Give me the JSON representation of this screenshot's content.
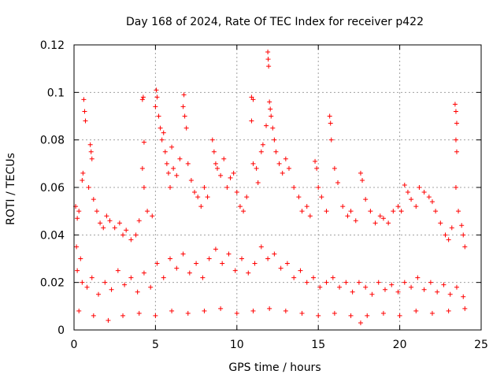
{
  "chart_data": {
    "type": "scatter",
    "title": "Day 168 of 2024, Rate Of TEC Index for receiver p422",
    "xlabel": "GPS time / hours",
    "ylabel": "ROTI / TECUs",
    "xlim": [
      0,
      25
    ],
    "ylim": [
      0,
      0.12
    ],
    "xticks": [
      0,
      5,
      10,
      15,
      20,
      25
    ],
    "xtick_labels": [
      "0",
      "5",
      "10",
      "15",
      "20",
      "25"
    ],
    "yticks": [
      0,
      0.02,
      0.04,
      0.06,
      0.08,
      0.1,
      0.12
    ],
    "ytick_labels": [
      "0",
      "0.02",
      "0.04",
      "0.06",
      "0.08",
      "0.1",
      "0.12"
    ],
    "grid": true,
    "marker": "+",
    "series": [
      {
        "color": "#ff0000",
        "points": [
          [
            0.6,
            0.097
          ],
          [
            0.65,
            0.092
          ],
          [
            0.7,
            0.088
          ],
          [
            0.55,
            0.066
          ],
          [
            0.5,
            0.063
          ],
          [
            0.3,
            0.05
          ],
          [
            0.2,
            0.047
          ],
          [
            0.1,
            0.052
          ],
          [
            0.15,
            0.035
          ],
          [
            0.4,
            0.03
          ],
          [
            1.0,
            0.078
          ],
          [
            1.05,
            0.075
          ],
          [
            1.1,
            0.072
          ],
          [
            0.9,
            0.06
          ],
          [
            1.2,
            0.055
          ],
          [
            1.4,
            0.05
          ],
          [
            1.6,
            0.045
          ],
          [
            1.8,
            0.043
          ],
          [
            2.0,
            0.048
          ],
          [
            2.2,
            0.046
          ],
          [
            2.5,
            0.043
          ],
          [
            2.8,
            0.045
          ],
          [
            3.0,
            0.04
          ],
          [
            3.2,
            0.042
          ],
          [
            3.5,
            0.038
          ],
          [
            3.8,
            0.04
          ],
          [
            4.0,
            0.046
          ],
          [
            4.2,
            0.097
          ],
          [
            4.25,
            0.098
          ],
          [
            4.3,
            0.079
          ],
          [
            4.2,
            0.068
          ],
          [
            4.3,
            0.06
          ],
          [
            4.5,
            0.05
          ],
          [
            4.8,
            0.048
          ],
          [
            5.05,
            0.101
          ],
          [
            5.1,
            0.098
          ],
          [
            5.0,
            0.094
          ],
          [
            5.2,
            0.09
          ],
          [
            5.3,
            0.085
          ],
          [
            5.4,
            0.08
          ],
          [
            5.5,
            0.083
          ],
          [
            5.6,
            0.075
          ],
          [
            5.7,
            0.07
          ],
          [
            5.8,
            0.066
          ],
          [
            5.9,
            0.06
          ],
          [
            6.0,
            0.077
          ],
          [
            6.1,
            0.068
          ],
          [
            6.3,
            0.065
          ],
          [
            6.5,
            0.072
          ],
          [
            6.7,
            0.094
          ],
          [
            6.75,
            0.099
          ],
          [
            6.8,
            0.09
          ],
          [
            6.9,
            0.085
          ],
          [
            7.0,
            0.07
          ],
          [
            7.2,
            0.063
          ],
          [
            7.4,
            0.058
          ],
          [
            7.6,
            0.056
          ],
          [
            7.8,
            0.052
          ],
          [
            8.0,
            0.06
          ],
          [
            8.2,
            0.056
          ],
          [
            8.5,
            0.08
          ],
          [
            8.6,
            0.075
          ],
          [
            8.7,
            0.07
          ],
          [
            8.8,
            0.068
          ],
          [
            9.0,
            0.065
          ],
          [
            9.2,
            0.072
          ],
          [
            9.4,
            0.06
          ],
          [
            9.6,
            0.064
          ],
          [
            9.8,
            0.066
          ],
          [
            10.0,
            0.058
          ],
          [
            10.2,
            0.052
          ],
          [
            10.4,
            0.05
          ],
          [
            10.6,
            0.056
          ],
          [
            10.9,
            0.098
          ],
          [
            11.0,
            0.097
          ],
          [
            10.9,
            0.088
          ],
          [
            11.0,
            0.07
          ],
          [
            11.2,
            0.068
          ],
          [
            11.3,
            0.062
          ],
          [
            11.5,
            0.075
          ],
          [
            11.6,
            0.078
          ],
          [
            11.8,
            0.086
          ],
          [
            11.9,
            0.117
          ],
          [
            11.92,
            0.114
          ],
          [
            11.95,
            0.111
          ],
          [
            12.0,
            0.096
          ],
          [
            12.05,
            0.093
          ],
          [
            12.1,
            0.09
          ],
          [
            12.2,
            0.085
          ],
          [
            12.3,
            0.08
          ],
          [
            12.4,
            0.075
          ],
          [
            12.6,
            0.07
          ],
          [
            12.8,
            0.066
          ],
          [
            13.0,
            0.072
          ],
          [
            13.2,
            0.068
          ],
          [
            13.5,
            0.06
          ],
          [
            13.8,
            0.056
          ],
          [
            14.0,
            0.05
          ],
          [
            14.3,
            0.052
          ],
          [
            14.5,
            0.048
          ],
          [
            14.8,
            0.071
          ],
          [
            14.9,
            0.068
          ],
          [
            15.0,
            0.06
          ],
          [
            15.2,
            0.056
          ],
          [
            15.5,
            0.05
          ],
          [
            15.7,
            0.09
          ],
          [
            15.75,
            0.087
          ],
          [
            15.8,
            0.08
          ],
          [
            16.0,
            0.068
          ],
          [
            16.2,
            0.062
          ],
          [
            16.5,
            0.052
          ],
          [
            16.8,
            0.048
          ],
          [
            17.0,
            0.05
          ],
          [
            17.3,
            0.046
          ],
          [
            17.6,
            0.066
          ],
          [
            17.7,
            0.063
          ],
          [
            17.9,
            0.055
          ],
          [
            18.2,
            0.05
          ],
          [
            18.5,
            0.045
          ],
          [
            18.8,
            0.048
          ],
          [
            19.0,
            0.047
          ],
          [
            19.3,
            0.045
          ],
          [
            19.6,
            0.05
          ],
          [
            19.9,
            0.052
          ],
          [
            20.1,
            0.05
          ],
          [
            20.3,
            0.061
          ],
          [
            20.5,
            0.058
          ],
          [
            20.7,
            0.055
          ],
          [
            21.0,
            0.052
          ],
          [
            21.2,
            0.06
          ],
          [
            21.5,
            0.058
          ],
          [
            21.8,
            0.056
          ],
          [
            22.0,
            0.054
          ],
          [
            22.2,
            0.05
          ],
          [
            22.5,
            0.045
          ],
          [
            22.8,
            0.04
          ],
          [
            23.0,
            0.038
          ],
          [
            23.2,
            0.043
          ],
          [
            23.4,
            0.095
          ],
          [
            23.45,
            0.092
          ],
          [
            23.5,
            0.087
          ],
          [
            23.45,
            0.08
          ],
          [
            23.5,
            0.075
          ],
          [
            23.45,
            0.06
          ],
          [
            23.6,
            0.05
          ],
          [
            23.8,
            0.044
          ],
          [
            23.9,
            0.04
          ],
          [
            24.0,
            0.035
          ],
          [
            0.2,
            0.025
          ],
          [
            0.5,
            0.02
          ],
          [
            0.8,
            0.018
          ],
          [
            1.1,
            0.022
          ],
          [
            1.5,
            0.015
          ],
          [
            1.9,
            0.02
          ],
          [
            2.3,
            0.017
          ],
          [
            2.7,
            0.025
          ],
          [
            3.1,
            0.019
          ],
          [
            3.5,
            0.022
          ],
          [
            3.9,
            0.016
          ],
          [
            4.3,
            0.024
          ],
          [
            4.7,
            0.018
          ],
          [
            5.1,
            0.028
          ],
          [
            5.5,
            0.022
          ],
          [
            5.9,
            0.03
          ],
          [
            6.3,
            0.026
          ],
          [
            6.7,
            0.032
          ],
          [
            7.1,
            0.024
          ],
          [
            7.5,
            0.028
          ],
          [
            7.9,
            0.022
          ],
          [
            8.3,
            0.03
          ],
          [
            8.7,
            0.034
          ],
          [
            9.1,
            0.028
          ],
          [
            9.5,
            0.032
          ],
          [
            9.9,
            0.025
          ],
          [
            10.3,
            0.03
          ],
          [
            10.7,
            0.024
          ],
          [
            11.1,
            0.028
          ],
          [
            11.5,
            0.035
          ],
          [
            11.9,
            0.03
          ],
          [
            12.3,
            0.032
          ],
          [
            12.7,
            0.026
          ],
          [
            13.1,
            0.028
          ],
          [
            13.5,
            0.022
          ],
          [
            13.9,
            0.025
          ],
          [
            14.3,
            0.02
          ],
          [
            14.7,
            0.022
          ],
          [
            15.1,
            0.018
          ],
          [
            15.5,
            0.02
          ],
          [
            15.9,
            0.022
          ],
          [
            16.3,
            0.018
          ],
          [
            16.7,
            0.02
          ],
          [
            17.1,
            0.016
          ],
          [
            17.5,
            0.02
          ],
          [
            17.9,
            0.018
          ],
          [
            18.3,
            0.015
          ],
          [
            18.7,
            0.02
          ],
          [
            19.1,
            0.017
          ],
          [
            19.5,
            0.019
          ],
          [
            19.9,
            0.016
          ],
          [
            20.3,
            0.02
          ],
          [
            20.7,
            0.018
          ],
          [
            21.1,
            0.022
          ],
          [
            21.5,
            0.017
          ],
          [
            21.9,
            0.02
          ],
          [
            22.3,
            0.016
          ],
          [
            22.7,
            0.019
          ],
          [
            23.1,
            0.015
          ],
          [
            23.5,
            0.018
          ],
          [
            23.9,
            0.014
          ],
          [
            0.3,
            0.008
          ],
          [
            1.2,
            0.006
          ],
          [
            2.1,
            0.004
          ],
          [
            3.0,
            0.006
          ],
          [
            4.0,
            0.007
          ],
          [
            5.0,
            0.006
          ],
          [
            6.0,
            0.008
          ],
          [
            7.0,
            0.007
          ],
          [
            8.0,
            0.008
          ],
          [
            9.0,
            0.009
          ],
          [
            10.0,
            0.007
          ],
          [
            11.0,
            0.008
          ],
          [
            12.0,
            0.009
          ],
          [
            13.0,
            0.008
          ],
          [
            14.0,
            0.007
          ],
          [
            15.0,
            0.006
          ],
          [
            16.0,
            0.007
          ],
          [
            17.0,
            0.006
          ],
          [
            17.6,
            0.003
          ],
          [
            18.0,
            0.006
          ],
          [
            19.0,
            0.007
          ],
          [
            20.0,
            0.006
          ],
          [
            21.0,
            0.008
          ],
          [
            22.0,
            0.007
          ],
          [
            23.0,
            0.008
          ],
          [
            24.0,
            0.009
          ]
        ]
      }
    ]
  }
}
